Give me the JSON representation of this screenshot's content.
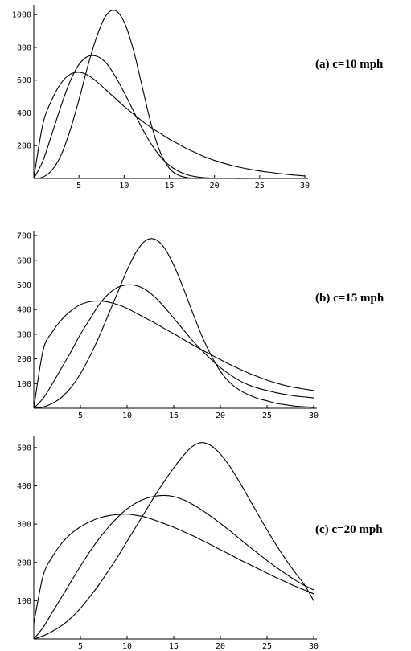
{
  "chart_data": [
    {
      "type": "line",
      "title": "(a) c=10 mph",
      "xlim": [
        0,
        30
      ],
      "ylim": [
        0,
        1050
      ],
      "xticks": [
        5,
        10,
        15,
        20,
        25,
        30
      ],
      "yticks": [
        200,
        400,
        600,
        800,
        1000
      ],
      "x": [
        0,
        1,
        2,
        3,
        4,
        5,
        6,
        7,
        8,
        9,
        10,
        11,
        12,
        13,
        14,
        15,
        16,
        17,
        18,
        19,
        20,
        22,
        24,
        26,
        28,
        30
      ],
      "series": [
        {
          "values": [
            0,
            330,
            480,
            580,
            635,
            648,
            630,
            590,
            540,
            490,
            440,
            395,
            350,
            310,
            275,
            240,
            210,
            180,
            155,
            130,
            110,
            78,
            55,
            38,
            25,
            15
          ]
        },
        {
          "values": [
            0,
            105,
            270,
            440,
            590,
            695,
            745,
            745,
            705,
            625,
            525,
            415,
            305,
            210,
            135,
            80,
            45,
            22,
            10,
            4,
            1,
            0,
            0,
            0,
            0,
            0
          ]
        },
        {
          "values": [
            0,
            8,
            50,
            140,
            290,
            480,
            690,
            870,
            995,
            1025,
            955,
            790,
            560,
            330,
            160,
            62,
            20,
            5,
            1,
            0,
            0,
            0,
            0,
            0,
            0,
            0
          ]
        }
      ]
    },
    {
      "type": "line",
      "title": "(b) c=15 mph",
      "xlim": [
        0,
        30
      ],
      "ylim": [
        0,
        710
      ],
      "xticks": [
        5,
        10,
        15,
        20,
        25,
        30
      ],
      "yticks": [
        100,
        200,
        300,
        400,
        500,
        600,
        700
      ],
      "x": [
        0,
        1,
        2,
        3,
        4,
        5,
        6,
        7,
        8,
        9,
        10,
        11,
        12,
        13,
        14,
        15,
        16,
        17,
        18,
        19,
        20,
        21,
        22,
        23,
        24,
        25,
        26,
        27,
        28,
        29,
        30
      ],
      "series": [
        {
          "values": [
            0,
            235,
            310,
            360,
            395,
            420,
            432,
            435,
            430,
            420,
            405,
            385,
            365,
            345,
            323,
            302,
            280,
            258,
            237,
            217,
            197,
            178,
            160,
            143,
            128,
            114,
            102,
            92,
            84,
            78,
            72
          ]
        },
        {
          "values": [
            0,
            40,
            100,
            165,
            230,
            300,
            360,
            420,
            463,
            490,
            500,
            497,
            480,
            450,
            410,
            365,
            320,
            275,
            235,
            198,
            165,
            137,
            113,
            95,
            82,
            72,
            63,
            56,
            50,
            46,
            42
          ]
        },
        {
          "values": [
            0,
            5,
            20,
            45,
            85,
            140,
            210,
            290,
            380,
            470,
            560,
            635,
            680,
            685,
            650,
            580,
            490,
            390,
            295,
            215,
            150,
            105,
            75,
            55,
            40,
            30,
            20,
            14,
            9,
            6,
            4
          ]
        }
      ]
    },
    {
      "type": "line",
      "title": "(c) c=20 mph",
      "xlim": [
        0,
        30
      ],
      "ylim": [
        0,
        525
      ],
      "xticks": [
        5,
        10,
        15,
        20,
        25,
        30
      ],
      "yticks": [
        100,
        200,
        300,
        400,
        500
      ],
      "x": [
        0,
        1,
        2,
        3,
        4,
        5,
        6,
        7,
        8,
        9,
        10,
        11,
        12,
        13,
        14,
        15,
        16,
        17,
        18,
        19,
        20,
        21,
        22,
        23,
        24,
        25,
        26,
        27,
        28,
        29,
        30
      ],
      "series": [
        {
          "values": [
            40,
            165,
            215,
            250,
            275,
            293,
            306,
            316,
            322,
            325,
            326,
            323,
            318,
            310,
            301,
            292,
            281,
            270,
            258,
            246,
            233,
            221,
            208,
            196,
            184,
            172,
            160,
            149,
            138,
            128,
            118
          ]
        },
        {
          "values": [
            0,
            30,
            70,
            110,
            150,
            190,
            228,
            262,
            292,
            318,
            340,
            356,
            367,
            373,
            375,
            372,
            364,
            352,
            337,
            320,
            302,
            283,
            263,
            243,
            224,
            205,
            187,
            170,
            154,
            140,
            128
          ]
        },
        {
          "values": [
            0,
            8,
            20,
            35,
            55,
            80,
            110,
            142,
            178,
            215,
            255,
            295,
            335,
            375,
            412,
            447,
            478,
            503,
            513,
            505,
            483,
            451,
            412,
            370,
            327,
            285,
            245,
            208,
            174,
            142,
            100
          ]
        }
      ]
    }
  ]
}
